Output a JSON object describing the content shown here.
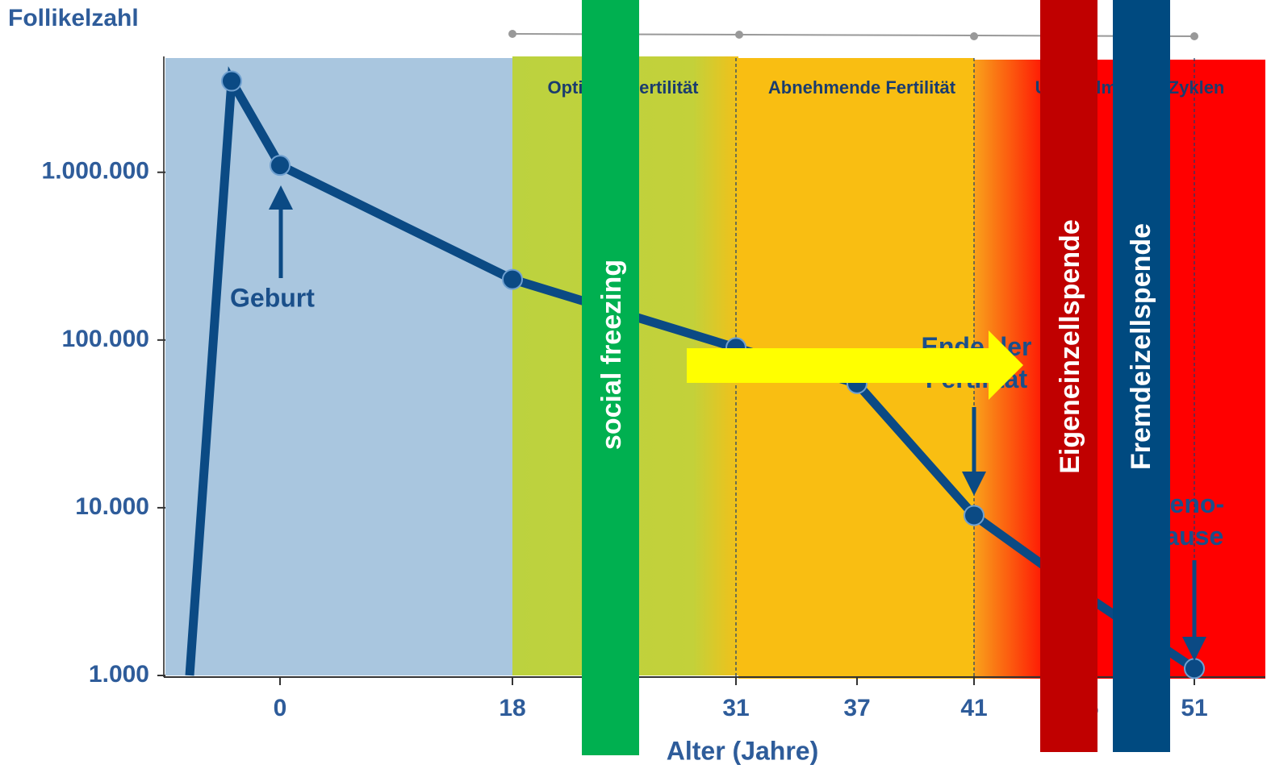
{
  "chart_data": {
    "type": "line",
    "title": "Follikelzahl",
    "x_label": "Alter (Jahre)",
    "categories": [
      null,
      null,
      "0",
      "18",
      "31",
      "37",
      "41",
      "46",
      "51"
    ],
    "series": [
      {
        "name": "Follikelzahl",
        "color": "#0b4a84",
        "values": [
          1000,
          3500000,
          1100000,
          230000,
          90000,
          55000,
          9000,
          3000,
          1100
        ]
      }
    ],
    "log_scale": true,
    "ylim": [
      1000,
      4800000
    ],
    "yticks": [
      {
        "value": 1000,
        "label": "1.000"
      },
      {
        "value": 10000,
        "label": "10.000"
      },
      {
        "value": 100000,
        "label": "100.000"
      },
      {
        "value": 1000000,
        "label": "1.000.000"
      }
    ],
    "bands": [
      "Optimale Fertilität",
      "Abnehmende Fertilität",
      "Unregelmäßige Zyklen"
    ],
    "annotations": [
      "Geburt",
      "Ende der Fertilität",
      "Meno-pause"
    ],
    "overlays": [
      "social freezing",
      "Eigeneinzellspende",
      "Fremdeizellspende"
    ]
  }
}
